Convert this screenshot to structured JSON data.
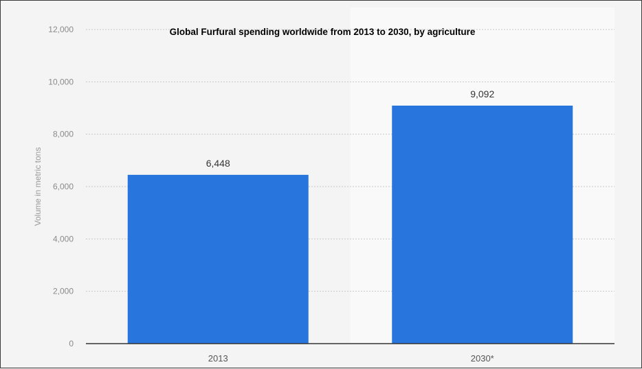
{
  "chart_data": {
    "type": "bar",
    "title": "Global Furfural spending worldwide from 2013 to 2030, by agriculture",
    "ylabel": "Volume in metric tons",
    "xlabel": "",
    "categories": [
      "2013",
      "2030*"
    ],
    "values": [
      6448,
      9092
    ],
    "data_labels": [
      "6,448",
      "9,092"
    ],
    "yticks": [
      0,
      2000,
      4000,
      6000,
      8000,
      10000,
      12000
    ],
    "ytick_labels": [
      "0",
      "2,000",
      "4,000",
      "6,000",
      "8,000",
      "10,000",
      "12,000"
    ],
    "ylim": [
      0,
      12000
    ],
    "grid": true,
    "bar_color": "#2876dd",
    "highlight_region_color": "#f9f9f9"
  }
}
